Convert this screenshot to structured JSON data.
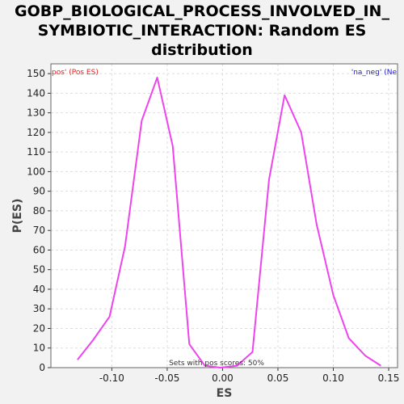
{
  "title_lines": [
    "GOBP_BIOLOGICAL_PROCESS_INVOLVED_IN_",
    "SYMBIOTIC_INTERACTION: Random ES",
    "distribution"
  ],
  "chart_data": {
    "type": "line",
    "xlabel": "ES",
    "ylabel": "P(ES)",
    "xlim": [
      -0.155,
      0.158
    ],
    "ylim": [
      0,
      155
    ],
    "x_ticks": [
      -0.1,
      -0.05,
      0.0,
      0.05,
      0.1,
      0.15
    ],
    "x_tick_labels": [
      "-0.10",
      "-0.05",
      "0.00",
      "0.05",
      "0.10",
      "0.15"
    ],
    "y_ticks": [
      0,
      10,
      20,
      30,
      40,
      50,
      60,
      70,
      80,
      90,
      100,
      110,
      120,
      130,
      140,
      150
    ],
    "grid": true,
    "series": [
      {
        "color": "#ee44ee",
        "x": [
          -0.131,
          -0.117,
          -0.102,
          -0.088,
          -0.073,
          -0.059,
          -0.045,
          -0.03,
          -0.016,
          -0.002,
          0.013,
          0.027,
          0.042,
          0.056,
          0.071,
          0.085,
          0.1,
          0.114,
          0.129,
          0.143
        ],
        "y": [
          4,
          14,
          26,
          62,
          126,
          148,
          113,
          12,
          1,
          0,
          1,
          8,
          96,
          139,
          120,
          73,
          37,
          15,
          6,
          1
        ]
      }
    ],
    "annotations": {
      "left_legend": "pos' (Pos ES)",
      "right_legend": "'na_neg' (Ne",
      "bottom_note": "Sets with pos scores: 50%"
    },
    "colors": {
      "line": "#ee44ee",
      "left_legend": "#dd2222",
      "right_legend": "#2222cc",
      "plot_bg": "#ffffff",
      "page_bg": "#f2f2f2"
    }
  }
}
